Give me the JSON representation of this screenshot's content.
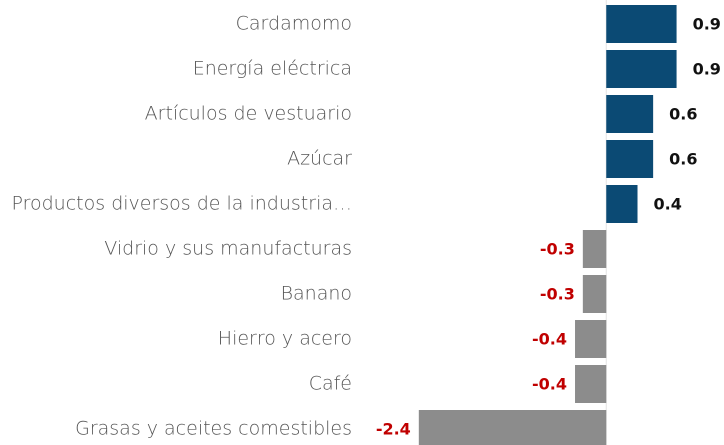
{
  "chart_data": {
    "type": "bar",
    "orientation": "horizontal",
    "categories": [
      "Cardamomo",
      "Energía eléctrica",
      "Artículos de vestuario",
      "Azúcar",
      "Productos diversos de la industria…",
      "Vidrio y sus manufacturas",
      "Banano",
      "Hierro y acero",
      "Café",
      "Grasas y aceites comestibles"
    ],
    "values": [
      0.9,
      0.9,
      0.6,
      0.6,
      0.4,
      -0.3,
      -0.3,
      -0.4,
      -0.4,
      -2.4
    ],
    "positive_color": "#0b4a74",
    "negative_color": "#8c8c8c",
    "positive_label_color": "#111111",
    "negative_label_color": "#c00000",
    "xlim": [
      -2.5,
      1.2
    ]
  }
}
